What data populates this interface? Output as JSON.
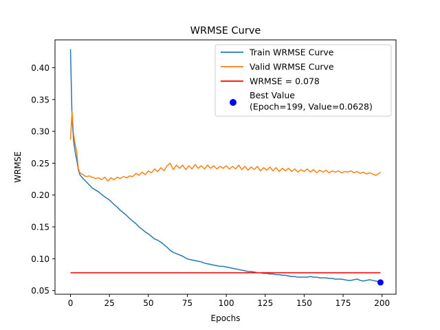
{
  "chart_data": {
    "type": "line",
    "title": "WRMSE Curve",
    "xlabel": "Epochs",
    "ylabel": "WRMSE",
    "xlim": [
      -9.95,
      208.95
    ],
    "ylim": [
      0.0442,
      0.4437
    ],
    "xticks": [
      0,
      25,
      50,
      75,
      100,
      125,
      150,
      175,
      200
    ],
    "yticks": [
      0.05,
      0.1,
      0.15,
      0.2,
      0.25,
      0.3,
      0.35,
      0.4
    ],
    "xtick_labels": [
      "0",
      "25",
      "50",
      "75",
      "100",
      "125",
      "150",
      "175",
      "200"
    ],
    "ytick_labels": [
      "0.05",
      "0.10",
      "0.15",
      "0.20",
      "0.25",
      "0.30",
      "0.35",
      "0.40"
    ],
    "grid": false,
    "legend_placement": "upper-right",
    "series": [
      {
        "name": "Train WRMSE Curve",
        "color": "#1f77b4",
        "points": [
          [
            0,
            0.429
          ],
          [
            1,
            0.32
          ],
          [
            2,
            0.285
          ],
          [
            3,
            0.268
          ],
          [
            4,
            0.255
          ],
          [
            5,
            0.24
          ],
          [
            6,
            0.232
          ],
          [
            8,
            0.226
          ],
          [
            10,
            0.221
          ],
          [
            12,
            0.216
          ],
          [
            14,
            0.211
          ],
          [
            16,
            0.208
          ],
          [
            18,
            0.205
          ],
          [
            20,
            0.201
          ],
          [
            22,
            0.197
          ],
          [
            24,
            0.194
          ],
          [
            26,
            0.19
          ],
          [
            28,
            0.185
          ],
          [
            30,
            0.181
          ],
          [
            32,
            0.176
          ],
          [
            34,
            0.172
          ],
          [
            36,
            0.168
          ],
          [
            38,
            0.163
          ],
          [
            40,
            0.159
          ],
          [
            42,
            0.155
          ],
          [
            44,
            0.15
          ],
          [
            46,
            0.146
          ],
          [
            48,
            0.142
          ],
          [
            50,
            0.139
          ],
          [
            52,
            0.135
          ],
          [
            54,
            0.131
          ],
          [
            56,
            0.129
          ],
          [
            58,
            0.126
          ],
          [
            60,
            0.122
          ],
          [
            62,
            0.118
          ],
          [
            64,
            0.113
          ],
          [
            66,
            0.11
          ],
          [
            68,
            0.108
          ],
          [
            70,
            0.106
          ],
          [
            72,
            0.104
          ],
          [
            74,
            0.101
          ],
          [
            76,
            0.099
          ],
          [
            78,
            0.098
          ],
          [
            80,
            0.097
          ],
          [
            82,
            0.096
          ],
          [
            84,
            0.095
          ],
          [
            86,
            0.093
          ],
          [
            88,
            0.092
          ],
          [
            90,
            0.091
          ],
          [
            92,
            0.09
          ],
          [
            94,
            0.089
          ],
          [
            96,
            0.088
          ],
          [
            98,
            0.088
          ],
          [
            100,
            0.087
          ],
          [
            102,
            0.086
          ],
          [
            104,
            0.085
          ],
          [
            106,
            0.084
          ],
          [
            108,
            0.083
          ],
          [
            110,
            0.082
          ],
          [
            112,
            0.081
          ],
          [
            114,
            0.08
          ],
          [
            116,
            0.08
          ],
          [
            118,
            0.079
          ],
          [
            120,
            0.078
          ],
          [
            122,
            0.078
          ],
          [
            124,
            0.077
          ],
          [
            126,
            0.077
          ],
          [
            128,
            0.076
          ],
          [
            130,
            0.076
          ],
          [
            132,
            0.075
          ],
          [
            134,
            0.075
          ],
          [
            136,
            0.074
          ],
          [
            138,
            0.074
          ],
          [
            140,
            0.073
          ],
          [
            142,
            0.072
          ],
          [
            144,
            0.072
          ],
          [
            146,
            0.071
          ],
          [
            148,
            0.071
          ],
          [
            150,
            0.071
          ],
          [
            152,
            0.071
          ],
          [
            154,
            0.072
          ],
          [
            156,
            0.071
          ],
          [
            158,
            0.071
          ],
          [
            160,
            0.07
          ],
          [
            162,
            0.07
          ],
          [
            164,
            0.07
          ],
          [
            166,
            0.069
          ],
          [
            168,
            0.069
          ],
          [
            170,
            0.068
          ],
          [
            172,
            0.068
          ],
          [
            174,
            0.068
          ],
          [
            176,
            0.067
          ],
          [
            178,
            0.066
          ],
          [
            180,
            0.066
          ],
          [
            182,
            0.067
          ],
          [
            184,
            0.068
          ],
          [
            186,
            0.066
          ],
          [
            188,
            0.065
          ],
          [
            190,
            0.066
          ],
          [
            192,
            0.067
          ],
          [
            194,
            0.066
          ],
          [
            196,
            0.065
          ],
          [
            198,
            0.064
          ],
          [
            199,
            0.063
          ]
        ]
      },
      {
        "name": "Valid WRMSE Curve",
        "color": "#ff7f0e",
        "points": [
          [
            0,
            0.287
          ],
          [
            1,
            0.331
          ],
          [
            2,
            0.295
          ],
          [
            3,
            0.28
          ],
          [
            4,
            0.268
          ],
          [
            5,
            0.242
          ],
          [
            6,
            0.235
          ],
          [
            8,
            0.232
          ],
          [
            10,
            0.229
          ],
          [
            12,
            0.23
          ],
          [
            14,
            0.228
          ],
          [
            16,
            0.226
          ],
          [
            18,
            0.227
          ],
          [
            20,
            0.224
          ],
          [
            22,
            0.228
          ],
          [
            24,
            0.222
          ],
          [
            26,
            0.227
          ],
          [
            28,
            0.224
          ],
          [
            30,
            0.228
          ],
          [
            32,
            0.226
          ],
          [
            34,
            0.229
          ],
          [
            36,
            0.227
          ],
          [
            38,
            0.23
          ],
          [
            40,
            0.229
          ],
          [
            42,
            0.234
          ],
          [
            44,
            0.231
          ],
          [
            46,
            0.236
          ],
          [
            48,
            0.232
          ],
          [
            50,
            0.238
          ],
          [
            52,
            0.235
          ],
          [
            54,
            0.241
          ],
          [
            56,
            0.237
          ],
          [
            58,
            0.243
          ],
          [
            60,
            0.238
          ],
          [
            62,
            0.246
          ],
          [
            64,
            0.25
          ],
          [
            66,
            0.24
          ],
          [
            68,
            0.247
          ],
          [
            70,
            0.242
          ],
          [
            72,
            0.247
          ],
          [
            74,
            0.24
          ],
          [
            76,
            0.246
          ],
          [
            78,
            0.241
          ],
          [
            80,
            0.248
          ],
          [
            82,
            0.242
          ],
          [
            84,
            0.246
          ],
          [
            86,
            0.241
          ],
          [
            88,
            0.247
          ],
          [
            90,
            0.242
          ],
          [
            92,
            0.246
          ],
          [
            94,
            0.241
          ],
          [
            96,
            0.245
          ],
          [
            98,
            0.242
          ],
          [
            100,
            0.246
          ],
          [
            102,
            0.241
          ],
          [
            104,
            0.245
          ],
          [
            106,
            0.241
          ],
          [
            108,
            0.247
          ],
          [
            110,
            0.24
          ],
          [
            112,
            0.245
          ],
          [
            114,
            0.239
          ],
          [
            116,
            0.244
          ],
          [
            118,
            0.24
          ],
          [
            120,
            0.245
          ],
          [
            122,
            0.238
          ],
          [
            124,
            0.243
          ],
          [
            126,
            0.239
          ],
          [
            128,
            0.244
          ],
          [
            130,
            0.238
          ],
          [
            132,
            0.243
          ],
          [
            134,
            0.237
          ],
          [
            136,
            0.242
          ],
          [
            138,
            0.238
          ],
          [
            140,
            0.242
          ],
          [
            142,
            0.237
          ],
          [
            144,
            0.241
          ],
          [
            146,
            0.236
          ],
          [
            148,
            0.24
          ],
          [
            150,
            0.237
          ],
          [
            152,
            0.241
          ],
          [
            154,
            0.236
          ],
          [
            156,
            0.24
          ],
          [
            158,
            0.235
          ],
          [
            160,
            0.239
          ],
          [
            162,
            0.236
          ],
          [
            164,
            0.239
          ],
          [
            166,
            0.235
          ],
          [
            168,
            0.238
          ],
          [
            170,
            0.236
          ],
          [
            172,
            0.238
          ],
          [
            174,
            0.235
          ],
          [
            176,
            0.237
          ],
          [
            178,
            0.236
          ],
          [
            180,
            0.238
          ],
          [
            182,
            0.235
          ],
          [
            184,
            0.237
          ],
          [
            186,
            0.234
          ],
          [
            188,
            0.236
          ],
          [
            190,
            0.233
          ],
          [
            192,
            0.235
          ],
          [
            194,
            0.233
          ],
          [
            196,
            0.231
          ],
          [
            198,
            0.234
          ],
          [
            199,
            0.236
          ]
        ]
      },
      {
        "name": "WRMSE = 0.078",
        "color": "#ff0000",
        "points": [
          [
            0,
            0.078
          ],
          [
            199,
            0.078
          ]
        ]
      }
    ],
    "best_point": {
      "label_line1": "Best Value",
      "label_line2": "(Epoch=199, Value=0.0628)",
      "x": 199,
      "y": 0.0628,
      "color": "#0000ff"
    }
  }
}
